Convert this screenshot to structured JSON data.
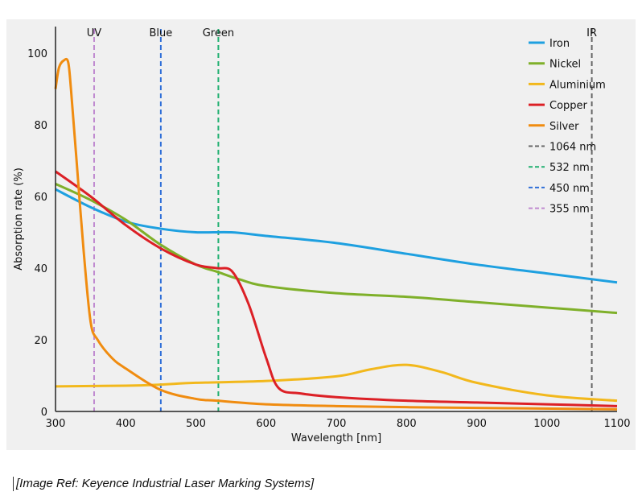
{
  "chart_data": {
    "type": "line",
    "xlabel": "Wavelength [nm]",
    "ylabel": "Absorption rate (%)",
    "xlim": [
      300,
      1100
    ],
    "ylim": [
      0,
      107
    ],
    "xticks": [
      300,
      400,
      500,
      600,
      700,
      800,
      900,
      1000,
      1100
    ],
    "yticks": [
      0,
      20,
      40,
      60,
      80,
      100
    ],
    "grid": false,
    "legend": "top-right",
    "series": [
      {
        "name": "Iron",
        "color": "#1ea0e0",
        "style": "solid",
        "x": [
          300,
          350,
          400,
          450,
          500,
          550,
          600,
          700,
          800,
          900,
          1000,
          1100
        ],
        "y": [
          62,
          57,
          53,
          51,
          50,
          50,
          49,
          47,
          44,
          41,
          38.5,
          36
        ]
      },
      {
        "name": "Nickel",
        "color": "#7fb02a",
        "style": "solid",
        "x": [
          300,
          350,
          400,
          450,
          500,
          530,
          560,
          600,
          700,
          800,
          900,
          1000,
          1100
        ],
        "y": [
          63.5,
          59,
          53.5,
          46.5,
          41,
          39,
          37,
          35,
          33,
          32,
          30.5,
          29,
          27.5
        ]
      },
      {
        "name": "Aluminium",
        "color": "#f2b81c",
        "style": "solid",
        "x": [
          300,
          400,
          450,
          500,
          600,
          700,
          750,
          800,
          850,
          900,
          1000,
          1100
        ],
        "y": [
          7,
          7.2,
          7.5,
          8,
          8.5,
          9.8,
          11.8,
          13,
          11,
          8,
          4.5,
          3
        ]
      },
      {
        "name": "Copper",
        "color": "#dc2026",
        "style": "solid",
        "x": [
          300,
          350,
          400,
          450,
          500,
          530,
          552,
          575,
          600,
          618,
          650,
          700,
          800,
          900,
          1000,
          1100
        ],
        "y": [
          67,
          60,
          52,
          45.5,
          41,
          40,
          39,
          30,
          15,
          6.5,
          5,
          4,
          3,
          2.5,
          2,
          1.5
        ]
      },
      {
        "name": "Silver",
        "color": "#f08c10",
        "style": "solid",
        "x": [
          300,
          305,
          312,
          318,
          322,
          330,
          340,
          350,
          360,
          380,
          400,
          450,
          500,
          530,
          600,
          700,
          800,
          1100
        ],
        "y": [
          90,
          96,
          98,
          97.5,
          90,
          70,
          45,
          25,
          20,
          15,
          12,
          6,
          3.5,
          3,
          2,
          1.5,
          1.2,
          0.6
        ]
      },
      {
        "name": "1064 nm",
        "color": "#666666",
        "style": "dashed",
        "vline": 1064,
        "label": "IR"
      },
      {
        "name": "532 nm",
        "color": "#20b070",
        "style": "dashed",
        "vline": 532,
        "label": "Green"
      },
      {
        "name": "450 nm",
        "color": "#2f6fd8",
        "style": "dashed",
        "vline": 450,
        "label": "Blue"
      },
      {
        "name": "355 nm",
        "color": "#c08ad0",
        "style": "dashed",
        "vline": 355,
        "label": "UV"
      }
    ]
  },
  "caption": "[Image Ref: Keyence Industrial Laser Marking Systems]"
}
